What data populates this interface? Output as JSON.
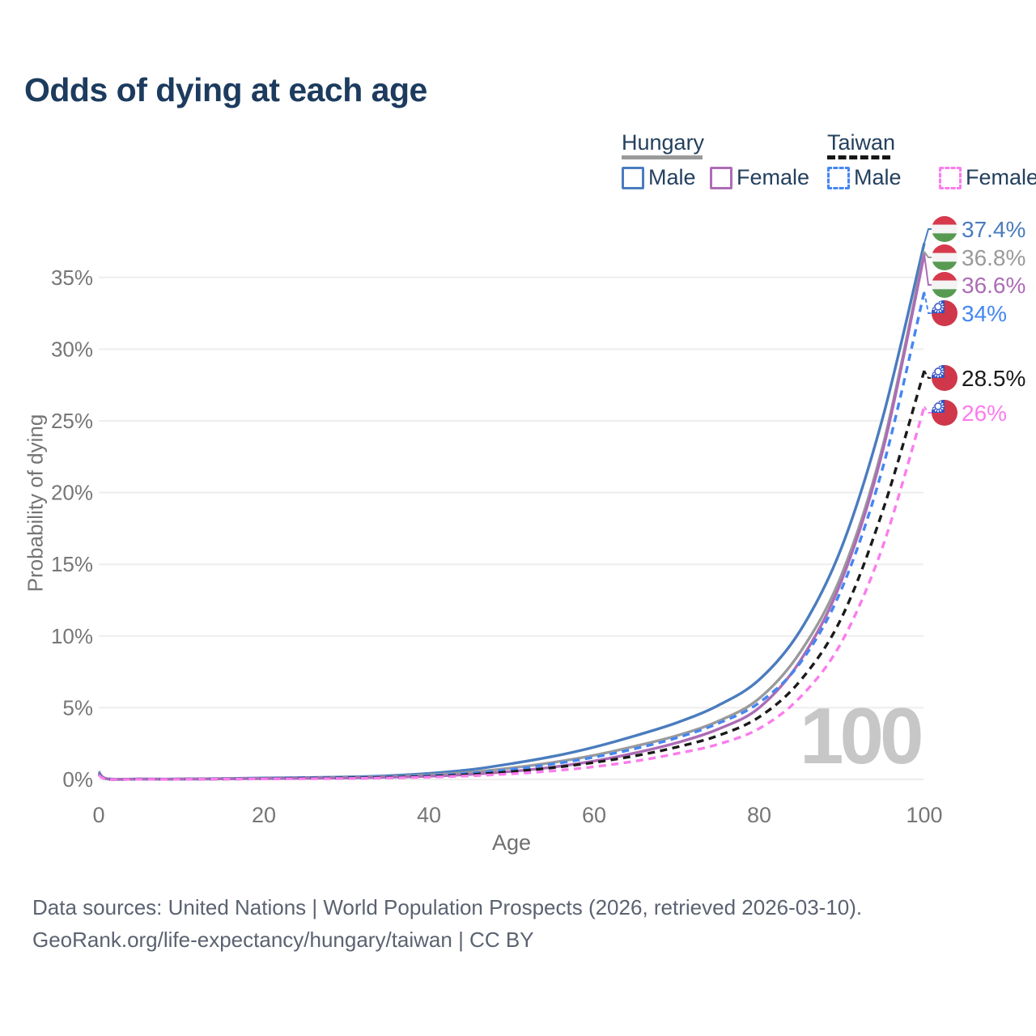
{
  "title": "Odds of dying at each age",
  "legend": {
    "groups": [
      {
        "label": "Hungary",
        "line_style": "solid",
        "underline_color": "#9a9a9a",
        "items": [
          {
            "label": "Male",
            "color": "#4a7cbe",
            "dashed": false
          },
          {
            "label": "Female",
            "color": "#ad6cb5",
            "dashed": false
          }
        ]
      },
      {
        "label": "Taiwan",
        "line_style": "dashed",
        "underline_color": "#161616",
        "items": [
          {
            "label": "Male",
            "color": "#4486f2",
            "dashed": true
          },
          {
            "label": "Female",
            "color": "#fb7ced",
            "dashed": true
          }
        ]
      }
    ]
  },
  "chart_data": {
    "type": "line",
    "title": "Odds of dying at each age",
    "xlabel": "Age",
    "ylabel": "Probability of dying",
    "xlim": [
      0,
      100
    ],
    "ylim_percent": [
      0,
      38
    ],
    "x_ticks": [
      0,
      20,
      40,
      60,
      80,
      100
    ],
    "y_ticks_percent": [
      0,
      5,
      10,
      15,
      20,
      25,
      30,
      35
    ],
    "y_tick_suffix": "%",
    "grid": "horizontal",
    "legend_position": "top-right",
    "watermark": "100",
    "ages": [
      0,
      1,
      5,
      10,
      15,
      20,
      25,
      30,
      35,
      40,
      45,
      50,
      55,
      60,
      65,
      70,
      75,
      80,
      85,
      90,
      95,
      100
    ],
    "series": [
      {
        "id": "hungary-male",
        "name": "Hungary Male",
        "country": "Hungary",
        "sex": "Male",
        "color": "#4a7cbe",
        "dashed": false,
        "flag": "hu",
        "end_label": "37.4%",
        "end_value_percent": 37.4,
        "values_percent": [
          0.55,
          0.05,
          0.03,
          0.03,
          0.06,
          0.1,
          0.13,
          0.17,
          0.26,
          0.42,
          0.68,
          1.1,
          1.6,
          2.25,
          3.05,
          3.95,
          5.15,
          6.95,
          10.4,
          16.2,
          25.3,
          37.4
        ]
      },
      {
        "id": "hungary-combined",
        "name": "Hungary Both sexes",
        "country": "Hungary",
        "sex": "Both",
        "color": "#9a9a9a",
        "dashed": false,
        "flag": "hu",
        "end_label": "36.8%",
        "end_value_percent": 36.8,
        "values_percent": [
          0.5,
          0.04,
          0.02,
          0.02,
          0.05,
          0.08,
          0.1,
          0.13,
          0.2,
          0.31,
          0.5,
          0.8,
          1.18,
          1.68,
          2.32,
          3.05,
          4.05,
          5.65,
          8.9,
          14.3,
          23.3,
          36.8
        ]
      },
      {
        "id": "hungary-female",
        "name": "Hungary Female",
        "country": "Hungary",
        "sex": "Female",
        "color": "#ad6cb5",
        "dashed": false,
        "flag": "hu",
        "end_label": "36.6%",
        "end_value_percent": 36.6,
        "values_percent": [
          0.45,
          0.04,
          0.02,
          0.02,
          0.04,
          0.06,
          0.08,
          0.1,
          0.15,
          0.22,
          0.35,
          0.56,
          0.86,
          1.28,
          1.85,
          2.55,
          3.5,
          5.0,
          8.3,
          13.9,
          23.0,
          36.6
        ]
      },
      {
        "id": "taiwan-male",
        "name": "Taiwan Male",
        "country": "Taiwan",
        "sex": "Male",
        "color": "#4486f2",
        "dashed": true,
        "flag": "tw",
        "end_label": "34%",
        "end_value_percent": 34,
        "values_percent": [
          0.4,
          0.03,
          0.02,
          0.02,
          0.04,
          0.07,
          0.1,
          0.13,
          0.18,
          0.27,
          0.43,
          0.7,
          1.08,
          1.55,
          2.15,
          2.9,
          3.9,
          5.35,
          8.15,
          13.3,
          21.8,
          34.0
        ]
      },
      {
        "id": "taiwan-combined",
        "name": "Taiwan Both sexes",
        "country": "Taiwan",
        "sex": "Both",
        "color": "#1a1a1a",
        "dashed": true,
        "flag": "tw",
        "end_label": "28.5%",
        "end_value_percent": 28.5,
        "values_percent": [
          0.35,
          0.03,
          0.02,
          0.02,
          0.03,
          0.05,
          0.08,
          0.1,
          0.14,
          0.21,
          0.34,
          0.54,
          0.82,
          1.18,
          1.65,
          2.25,
          3.05,
          4.35,
          6.9,
          11.3,
          18.8,
          28.5
        ]
      },
      {
        "id": "taiwan-female",
        "name": "Taiwan Female",
        "country": "Taiwan",
        "sex": "Female",
        "color": "#fb7ced",
        "dashed": true,
        "flag": "tw",
        "end_label": "26%",
        "end_value_percent": 26,
        "values_percent": [
          0.32,
          0.03,
          0.01,
          0.01,
          0.03,
          0.04,
          0.05,
          0.07,
          0.1,
          0.16,
          0.25,
          0.39,
          0.6,
          0.88,
          1.28,
          1.8,
          2.45,
          3.55,
          5.75,
          9.6,
          16.3,
          26.0
        ]
      }
    ],
    "flag_colors": {
      "hungary_red": "#d63a4c",
      "hungary_white": "#f4f4f4",
      "hungary_green": "#589a52",
      "taiwan_red": "#d0374a",
      "taiwan_blue": "#2f55c4",
      "taiwan_sun": "#ffffff"
    }
  },
  "footer": {
    "line1": "Data sources: United Nations | World Population Prospects (2026, retrieved 2026-03-10).",
    "line2": "GeoRank.org/life-expectancy/hungary/taiwan | CC BY"
  }
}
